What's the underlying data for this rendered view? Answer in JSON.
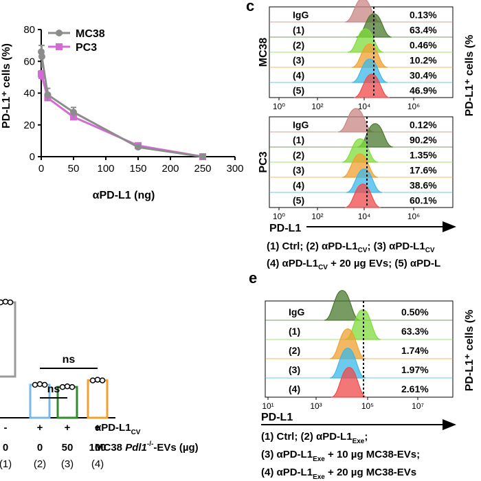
{
  "panel_letters": {
    "c": "c",
    "e": "e"
  },
  "chart_data": [
    {
      "type": "line",
      "xlabel": "αPD-L1 (ng)",
      "ylabel": "PD-L1⁺ cells (%)",
      "xlim": [
        0,
        300
      ],
      "ylim": [
        0,
        80
      ],
      "xticks": [
        0,
        50,
        100,
        150,
        200,
        250,
        300
      ],
      "yticks": [
        0,
        20,
        40,
        60,
        80
      ],
      "legend_position": "top-right",
      "series": [
        {
          "name": "MC38",
          "color": "#8c8c8c",
          "marker": "circle",
          "x": [
            0,
            1,
            10,
            50,
            150,
            250
          ],
          "y": [
            66,
            63,
            39,
            28,
            6,
            0
          ],
          "err": [
            4,
            7,
            4,
            3,
            1,
            1
          ]
        },
        {
          "name": "PC3",
          "color": "#d46bd4",
          "marker": "square",
          "x": [
            0,
            1,
            10,
            50,
            150,
            250
          ],
          "y": [
            52,
            51,
            37,
            25,
            7,
            0
          ],
          "err": [
            2,
            3,
            2,
            2,
            1,
            1
          ]
        }
      ]
    },
    {
      "type": "histogram",
      "row_label": "MC38",
      "xticks": [
        "10⁰",
        "10²",
        "10⁴",
        "10⁶"
      ],
      "samples": [
        {
          "label": "IgG",
          "value": "0.13%",
          "color": "#c98585"
        },
        {
          "label": "(1)",
          "value": "63.4%",
          "color": "#4a7a2e"
        },
        {
          "label": "(2)",
          "value": "0.46%",
          "color": "#7fdb3b"
        },
        {
          "label": "(3)",
          "value": "10.2%",
          "color": "#f0a030"
        },
        {
          "label": "(4)",
          "value": "30.4%",
          "color": "#3bb8e8"
        },
        {
          "label": "(5)",
          "value": "46.9%",
          "color": "#f04a4a"
        }
      ],
      "y_axis_label": "PD-L1⁺ cells (%"
    },
    {
      "type": "histogram",
      "row_label": "PC3",
      "xaxis_label": "PD-L1",
      "xticks": [
        "10⁰",
        "10²",
        "10⁴",
        "10⁶"
      ],
      "samples": [
        {
          "label": "IgG",
          "value": "0.12%",
          "color": "#c98585"
        },
        {
          "label": "(1)",
          "value": "90.2%",
          "color": "#4a7a2e"
        },
        {
          "label": "(2)",
          "value": "1.35%",
          "color": "#7fdb3b"
        },
        {
          "label": "(3)",
          "value": "17.6%",
          "color": "#f0a030"
        },
        {
          "label": "(4)",
          "value": "38.6%",
          "color": "#3bb8e8"
        },
        {
          "label": "(5)",
          "value": "60.1%",
          "color": "#f04a4a"
        }
      ],
      "legend_lines": [
        "(1) Ctrl; (2) αPD-L1",
        "CV",
        "; (3) αPD-L1",
        "CV",
        "(4) αPD-L1",
        "CV",
        " + 20 µg EVs; (5) αPD-L"
      ]
    },
    {
      "type": "bar",
      "categories": [
        "(1)",
        "(2)",
        "(3)",
        "(4)"
      ],
      "row1_label": "αPD-L1",
      "row1_sub": "CV",
      "row1_values": [
        "-",
        "+",
        "+",
        "+"
      ],
      "row2_label_a": "MC38 ",
      "row2_label_b": "Pdl1",
      "row2_label_sup": "-/-",
      "row2_label_c": "-EVs (µg)",
      "row2_values": [
        "0",
        "0",
        "50",
        "100"
      ],
      "values": [
        105,
        30,
        28,
        34
      ],
      "colors": [
        "#9a9a9a",
        "#7ab8e8",
        "#2e8b2e",
        "#f0a030"
      ],
      "significance": [
        {
          "from": 1,
          "to": 3,
          "label": "ns"
        },
        {
          "from": 1,
          "to": 2,
          "label": "ns"
        }
      ]
    },
    {
      "type": "histogram",
      "panel_letter": "e",
      "xaxis_label": "PD-L1",
      "xticks": [
        "10¹",
        "10³",
        "10⁵",
        "10⁷"
      ],
      "samples": [
        {
          "label": "IgG",
          "value": "0.50%",
          "color": "#4a7a2e"
        },
        {
          "label": "(1)",
          "value": "63.3%",
          "color": "#7fdb3b"
        },
        {
          "label": "(2)",
          "value": "1.74%",
          "color": "#f0a030"
        },
        {
          "label": "(3)",
          "value": "1.97%",
          "color": "#3bb8e8"
        },
        {
          "label": "(4)",
          "value": "2.61%",
          "color": "#f04a4a"
        }
      ],
      "y_axis_label": "PD-L1⁺ cells (%",
      "legend": {
        "l1a": "(1) Ctrl; (2) αPD-L1",
        "l1sub": "Exe",
        "l1b": ";",
        "l2a": "(3) αPD-L1",
        "l2sub": "Exe",
        "l2b": " + 10 µg MC38-EVs;",
        "l3a": "(4) αPD-L1",
        "l3sub": "Exe",
        "l3b": " + 20 µg MC38-EVs"
      }
    }
  ]
}
